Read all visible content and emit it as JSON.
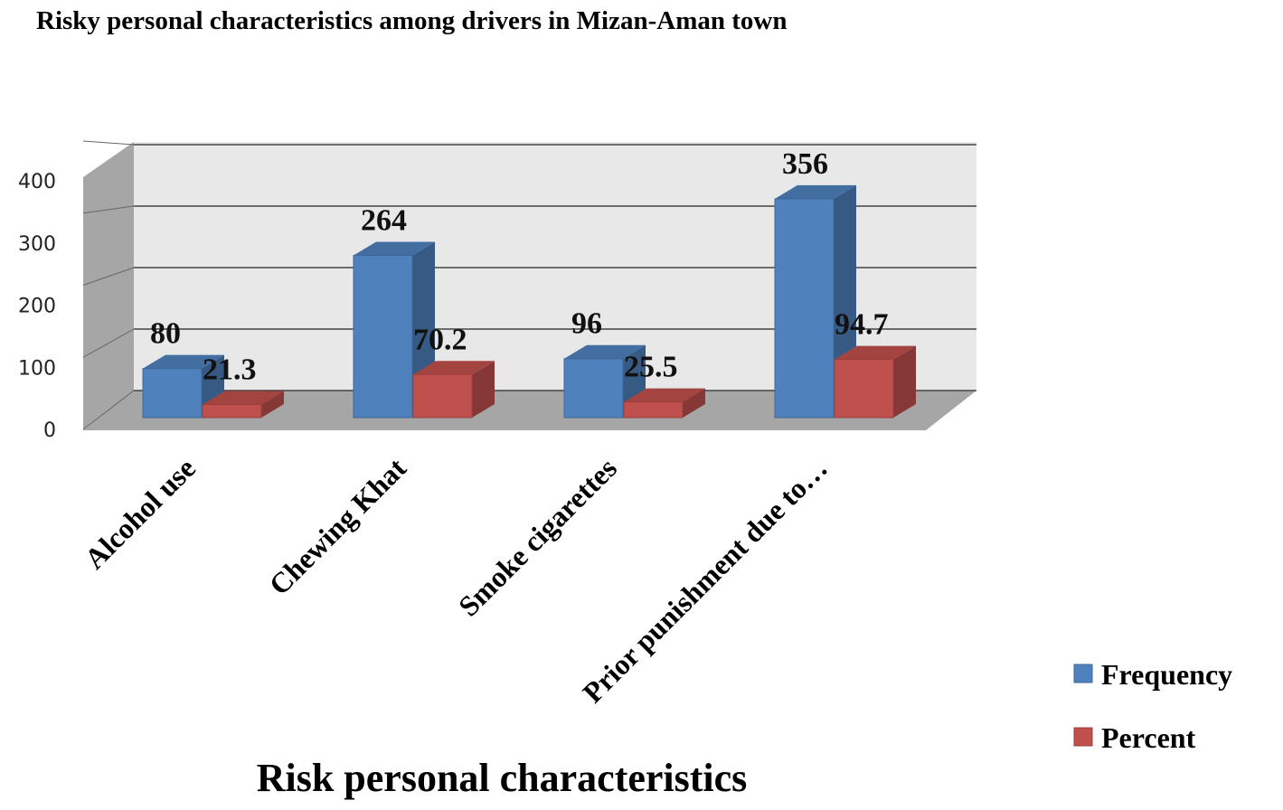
{
  "chart_data": {
    "type": "bar3d",
    "title": "Risky personal characteristics among drivers in Mizan-Aman town",
    "x_label": "Risk personal characteristics",
    "categories": [
      "Alcohol use",
      "Chewing Khat",
      "Smoke cigarettes",
      "Prior punishment due to…"
    ],
    "series": [
      {
        "name": "Frequency",
        "color": "#4f81bd",
        "values": [
          80,
          264,
          96,
          356
        ]
      },
      {
        "name": "Percent",
        "color": "#c0504d",
        "values": [
          21.3,
          70.2,
          25.5,
          94.7
        ]
      }
    ],
    "ylim": [
      0,
      400
    ],
    "yticks": [
      0,
      100,
      200,
      300,
      400
    ],
    "grid": true,
    "legend": "right"
  }
}
